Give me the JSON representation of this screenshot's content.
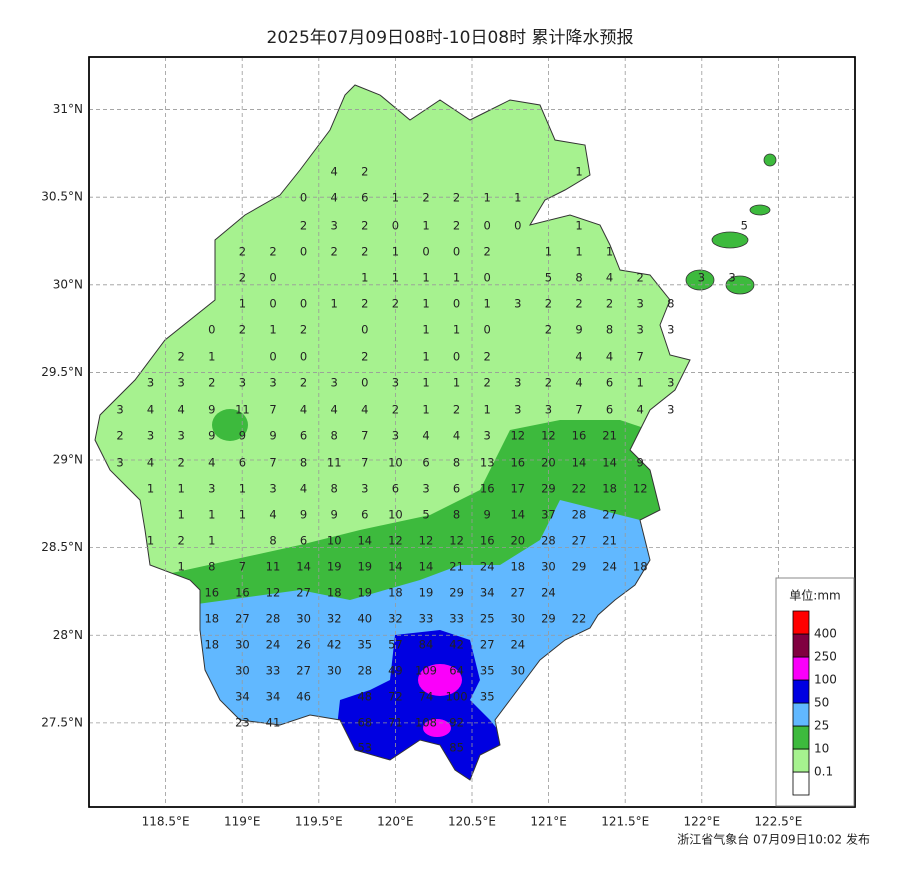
{
  "chart_data": {
    "type": "map",
    "title": "2025年07月09日08时-10日08时 累计降水预报",
    "footer": "浙江省气象台 07月09日10:02 发布",
    "xlim": [
      118.0,
      123.0
    ],
    "ylim": [
      27.02,
      31.3
    ],
    "xticks": [
      {
        "value": 118.5,
        "label": "118.5°E"
      },
      {
        "value": 119,
        "label": "119°E"
      },
      {
        "value": 119.5,
        "label": "119.5°E"
      },
      {
        "value": 120,
        "label": "120°E"
      },
      {
        "value": 120.5,
        "label": "120.5°E"
      },
      {
        "value": 121,
        "label": "121°E"
      },
      {
        "value": 121.5,
        "label": "121.5°E"
      },
      {
        "value": 122,
        "label": "122°E"
      },
      {
        "value": 122.5,
        "label": "122.5°E"
      }
    ],
    "yticks": [
      {
        "value": 27.5,
        "label": "27.5°N"
      },
      {
        "value": 28,
        "label": "28°N"
      },
      {
        "value": 28.5,
        "label": "28.5°N"
      },
      {
        "value": 29,
        "label": "29°N"
      },
      {
        "value": 29.5,
        "label": "29.5°N"
      },
      {
        "value": 30,
        "label": "30°N"
      },
      {
        "value": 30.5,
        "label": "30.5°N"
      },
      {
        "value": 31,
        "label": "31°N"
      }
    ],
    "grid": true,
    "legend": {
      "title": "单位:mm",
      "levels": [
        0.1,
        10,
        25,
        50,
        100,
        250,
        400
      ],
      "colors": [
        "#ffffff",
        "#a6f28f",
        "#3dba3d",
        "#61b8ff",
        "#0000e1",
        "#fa00fa",
        "#800040",
        "#ff0000"
      ]
    },
    "stations": [
      [
        4,
        2,
        1
      ],
      [
        0,
        4,
        6,
        1,
        2,
        2,
        1,
        1
      ],
      [
        2,
        3,
        2,
        0,
        1,
        2,
        0,
        0,
        1,
        5
      ],
      [
        2,
        2,
        0,
        2,
        2,
        1,
        0,
        0,
        2,
        1,
        1,
        1
      ],
      [
        2,
        0,
        1,
        1,
        1,
        1,
        0,
        5,
        8,
        4,
        2,
        3,
        3
      ],
      [
        1,
        0,
        0,
        1,
        2,
        2,
        1,
        0,
        1,
        3,
        2,
        2,
        2,
        3,
        8
      ],
      [
        0,
        2,
        1,
        2,
        0,
        1,
        1,
        0,
        2,
        9,
        8,
        3,
        3
      ],
      [
        2,
        1,
        0,
        0,
        2,
        1,
        0,
        2,
        4,
        4,
        7
      ],
      [
        3,
        3,
        2,
        3,
        3,
        2,
        3,
        0,
        3,
        1,
        1,
        2,
        3,
        2,
        4,
        6,
        1,
        3
      ],
      [
        3,
        4,
        4,
        9,
        11,
        7,
        4,
        4,
        4,
        2,
        1,
        2,
        1,
        3,
        3,
        7,
        6,
        4,
        3
      ],
      [
        2,
        3,
        3,
        9,
        9,
        9,
        6,
        8,
        7,
        3,
        4,
        4,
        3,
        12,
        12,
        16,
        21
      ],
      [
        3,
        4,
        2,
        4,
        6,
        7,
        8,
        11,
        7,
        10,
        6,
        8,
        13,
        16,
        20,
        14,
        14,
        9
      ],
      [
        1,
        1,
        3,
        1,
        3,
        4,
        8,
        3,
        6,
        3,
        6,
        16,
        17,
        29,
        22,
        18,
        12
      ],
      [
        1,
        1,
        1,
        4,
        9,
        9,
        6,
        10,
        5,
        8,
        9,
        14,
        37,
        28,
        27
      ],
      [
        1,
        2,
        1,
        8,
        6,
        10,
        14,
        12,
        12,
        12,
        16,
        20,
        28,
        27,
        21
      ],
      [
        1,
        8,
        7,
        11,
        14,
        19,
        19,
        14,
        14,
        21,
        24,
        18,
        30,
        29,
        24,
        18
      ],
      [
        16,
        16,
        12,
        27,
        18,
        19,
        18,
        19,
        29,
        34,
        27,
        24
      ],
      [
        18,
        27,
        28,
        30,
        32,
        40,
        32,
        33,
        33,
        25,
        30,
        29,
        22
      ],
      [
        18,
        30,
        24,
        26,
        42,
        35,
        57,
        84,
        42,
        27,
        24
      ],
      [
        30,
        33,
        27,
        30,
        28,
        49,
        109,
        64,
        35,
        30
      ],
      [
        34,
        34,
        46,
        48,
        72,
        74,
        100,
        35
      ],
      [
        23,
        41,
        68,
        71,
        108,
        92
      ],
      [
        53,
        85
      ]
    ]
  }
}
